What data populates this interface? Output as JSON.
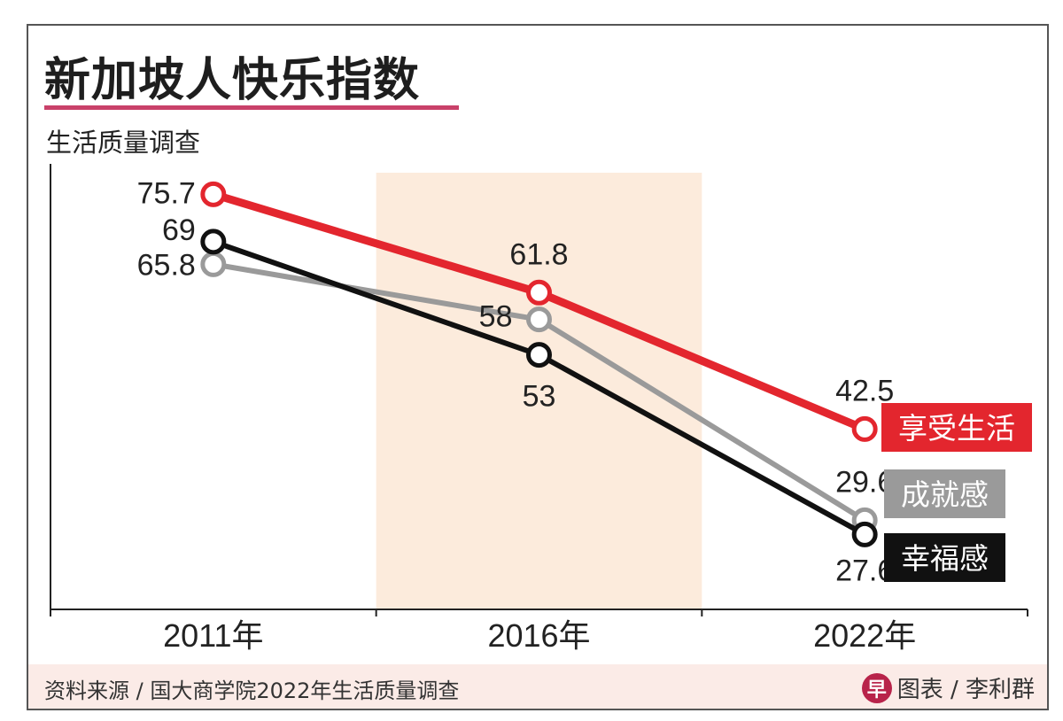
{
  "chart_data": {
    "type": "line",
    "title": "新加坡人快乐指数",
    "subtitle": "生活质量调查",
    "categories": [
      "2011年",
      "2016年",
      "2022年"
    ],
    "series": [
      {
        "name": "享受生活",
        "values": [
          75.7,
          61.8,
          42.5
        ],
        "color": "#e3262e"
      },
      {
        "name": "成就感",
        "values": [
          65.8,
          58,
          29.6
        ],
        "color": "#9a9a9a"
      },
      {
        "name": "幸福感",
        "values": [
          69,
          53,
          27.6
        ],
        "color": "#111111"
      }
    ],
    "ylim": [
      17,
      80
    ],
    "highlight_category": "2016年",
    "highlight_color": "#fcebdc",
    "grid": false,
    "legend": "right"
  },
  "footer": {
    "source": "资料来源 / 国大商学院2022年生活质量调查",
    "logo_text": "早",
    "credit": "图表 / 李利群"
  }
}
